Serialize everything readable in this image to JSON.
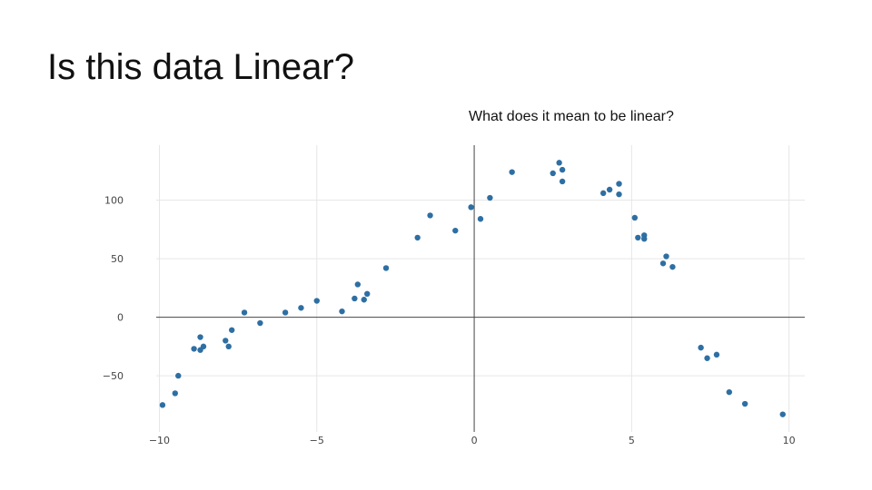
{
  "slide": {
    "title": "Is this data Linear?",
    "subtitle": "What does it mean to be linear?"
  },
  "chart_data": {
    "type": "scatter",
    "title": "",
    "xlabel": "",
    "ylabel": "",
    "xlim": [
      -10.1,
      10.5
    ],
    "ylim": [
      -98,
      147
    ],
    "grid": true,
    "legend": "none",
    "marker_color": "#2e6fa3",
    "grid_color": "#e6e6e6",
    "zero_line_color": "#444444",
    "x_ticks": [
      -10,
      -5,
      0,
      5,
      10
    ],
    "x_tick_labels": [
      "−10",
      "−5",
      "0",
      "5",
      "10"
    ],
    "y_ticks": [
      -50,
      0,
      50,
      100
    ],
    "y_tick_labels": [
      "−50",
      "0",
      "50",
      "100"
    ],
    "series": [
      {
        "points": [
          [
            -9.9,
            -75
          ],
          [
            -9.5,
            -65
          ],
          [
            -9.4,
            -50
          ],
          [
            -8.9,
            -27
          ],
          [
            -8.7,
            -28
          ],
          [
            -8.7,
            -17
          ],
          [
            -8.6,
            -25
          ],
          [
            -7.9,
            -20
          ],
          [
            -7.8,
            -25
          ],
          [
            -7.7,
            -11
          ],
          [
            -7.3,
            4
          ],
          [
            -6.8,
            -5
          ],
          [
            -6.0,
            4
          ],
          [
            -5.5,
            8
          ],
          [
            -5.0,
            14
          ],
          [
            -4.2,
            5
          ],
          [
            -3.8,
            16
          ],
          [
            -3.7,
            28
          ],
          [
            -3.5,
            15
          ],
          [
            -3.4,
            20
          ],
          [
            -2.8,
            42
          ],
          [
            -1.8,
            68
          ],
          [
            -1.4,
            87
          ],
          [
            -0.6,
            74
          ],
          [
            -0.1,
            94
          ],
          [
            0.2,
            84
          ],
          [
            0.5,
            102
          ],
          [
            1.2,
            124
          ],
          [
            2.5,
            123
          ],
          [
            2.7,
            132
          ],
          [
            2.8,
            126
          ],
          [
            2.8,
            116
          ],
          [
            4.1,
            106
          ],
          [
            4.3,
            109
          ],
          [
            4.6,
            114
          ],
          [
            4.6,
            105
          ],
          [
            5.1,
            85
          ],
          [
            5.2,
            68
          ],
          [
            5.4,
            70
          ],
          [
            5.4,
            67
          ],
          [
            6.0,
            46
          ],
          [
            6.1,
            52
          ],
          [
            6.3,
            43
          ],
          [
            7.2,
            -26
          ],
          [
            7.4,
            -35
          ],
          [
            7.7,
            -32
          ],
          [
            8.1,
            -64
          ],
          [
            8.6,
            -74
          ],
          [
            9.8,
            -83
          ]
        ]
      }
    ]
  }
}
